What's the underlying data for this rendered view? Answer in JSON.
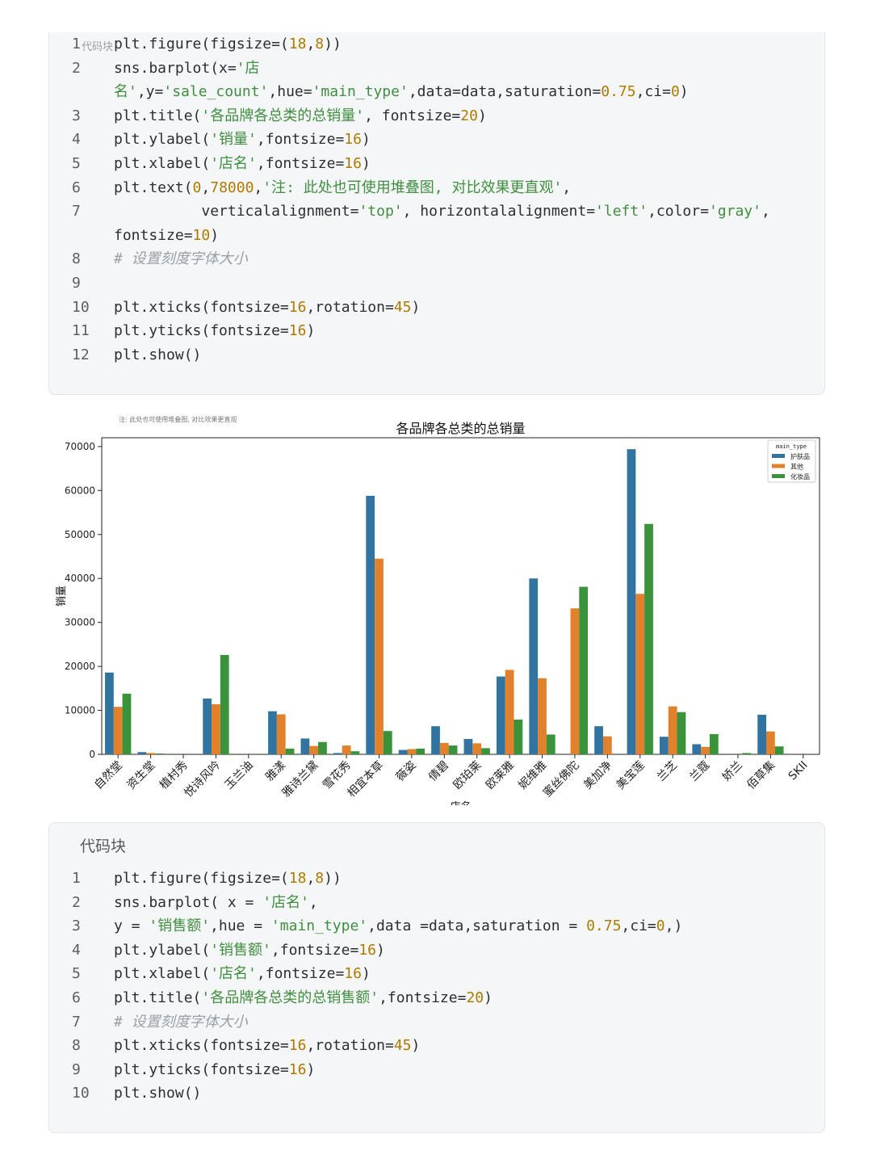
{
  "code_block_1": {
    "title": "代码块",
    "lines": [
      {
        "n": "1",
        "segs": [
          [
            "t",
            "plt.figure(figsize=("
          ],
          [
            "n",
            "18"
          ],
          [
            "t",
            ","
          ],
          [
            "n",
            "8"
          ],
          [
            "t",
            "))"
          ]
        ]
      },
      {
        "n": "2",
        "segs": [
          [
            "t",
            "sns.barplot(x="
          ],
          [
            "s",
            "'店"
          ]
        ]
      },
      {
        "n": "",
        "segs": [
          [
            "s",
            "名'"
          ],
          [
            "t",
            ",y="
          ],
          [
            "s",
            "'sale_count'"
          ],
          [
            "t",
            ",hue="
          ],
          [
            "s",
            "'main_type'"
          ],
          [
            "t",
            ",data=data,saturation="
          ],
          [
            "n",
            "0.75"
          ],
          [
            "t",
            ",ci="
          ],
          [
            "n",
            "0"
          ],
          [
            "t",
            ")"
          ]
        ]
      },
      {
        "n": "3",
        "segs": [
          [
            "t",
            "plt.title("
          ],
          [
            "s",
            "'各品牌各总类的总销量'"
          ],
          [
            "t",
            ", fontsize="
          ],
          [
            "n",
            "20"
          ],
          [
            "t",
            ")"
          ]
        ]
      },
      {
        "n": "4",
        "segs": [
          [
            "t",
            "plt.ylabel("
          ],
          [
            "s",
            "'销量'"
          ],
          [
            "t",
            ",fontsize="
          ],
          [
            "n",
            "16"
          ],
          [
            "t",
            ")"
          ]
        ]
      },
      {
        "n": "5",
        "segs": [
          [
            "t",
            "plt.xlabel("
          ],
          [
            "s",
            "'店名'"
          ],
          [
            "t",
            ",fontsize="
          ],
          [
            "n",
            "16"
          ],
          [
            "t",
            ")"
          ]
        ]
      },
      {
        "n": "6",
        "segs": [
          [
            "t",
            "plt.text("
          ],
          [
            "n",
            "0"
          ],
          [
            "t",
            ","
          ],
          [
            "n",
            "78000"
          ],
          [
            "t",
            ","
          ],
          [
            "s",
            "'注: 此处也可使用堆叠图, 对比效果更直观'"
          ],
          [
            "t",
            ","
          ]
        ]
      },
      {
        "n": "7",
        "segs": [
          [
            "t",
            "          verticalalignment="
          ],
          [
            "s",
            "'top'"
          ],
          [
            "t",
            ", horizontalalignment="
          ],
          [
            "s",
            "'left'"
          ],
          [
            "t",
            ",color="
          ],
          [
            "s",
            "'gray'"
          ],
          [
            "t",
            ","
          ]
        ]
      },
      {
        "n": "",
        "segs": [
          [
            "t",
            "fontsize="
          ],
          [
            "n",
            "10"
          ],
          [
            "t",
            ")"
          ]
        ]
      },
      {
        "n": "8",
        "segs": [
          [
            "c",
            "# 设置刻度字体大小"
          ]
        ]
      },
      {
        "n": "9",
        "segs": []
      },
      {
        "n": "10",
        "segs": [
          [
            "t",
            "plt.xticks(fontsize="
          ],
          [
            "n",
            "16"
          ],
          [
            "t",
            ",rotation="
          ],
          [
            "n",
            "45"
          ],
          [
            "t",
            ")"
          ]
        ]
      },
      {
        "n": "11",
        "segs": [
          [
            "t",
            "plt.yticks(fontsize="
          ],
          [
            "n",
            "16"
          ],
          [
            "t",
            ")"
          ]
        ]
      },
      {
        "n": "12",
        "segs": [
          [
            "t",
            "plt.show()"
          ]
        ]
      }
    ]
  },
  "code_block_2": {
    "title": "代码块",
    "lines": [
      {
        "n": "1",
        "segs": [
          [
            "t",
            "plt.figure(figsize=("
          ],
          [
            "n",
            "18"
          ],
          [
            "t",
            ","
          ],
          [
            "n",
            "8"
          ],
          [
            "t",
            "))"
          ]
        ]
      },
      {
        "n": "2",
        "segs": [
          [
            "t",
            "sns.barplot( x = "
          ],
          [
            "s",
            "'店名'"
          ],
          [
            "t",
            ","
          ]
        ]
      },
      {
        "n": "3",
        "segs": [
          [
            "t",
            "y = "
          ],
          [
            "s",
            "'销售额'"
          ],
          [
            "t",
            ",hue = "
          ],
          [
            "s",
            "'main_type'"
          ],
          [
            "t",
            ",data =data,saturation = "
          ],
          [
            "n",
            "0.75"
          ],
          [
            "t",
            ",ci="
          ],
          [
            "n",
            "0"
          ],
          [
            "t",
            ",)"
          ]
        ]
      },
      {
        "n": "4",
        "segs": [
          [
            "t",
            "plt.ylabel("
          ],
          [
            "s",
            "'销售额'"
          ],
          [
            "t",
            ",fontsize="
          ],
          [
            "n",
            "16"
          ],
          [
            "t",
            ")"
          ]
        ]
      },
      {
        "n": "5",
        "segs": [
          [
            "t",
            "plt.xlabel("
          ],
          [
            "s",
            "'店名'"
          ],
          [
            "t",
            ",fontsize="
          ],
          [
            "n",
            "16"
          ],
          [
            "t",
            ")"
          ]
        ]
      },
      {
        "n": "6",
        "segs": [
          [
            "t",
            "plt.title("
          ],
          [
            "s",
            "'各品牌各总类的总销售额'"
          ],
          [
            "t",
            ",fontsize="
          ],
          [
            "n",
            "20"
          ],
          [
            "t",
            ")"
          ]
        ]
      },
      {
        "n": "7",
        "segs": [
          [
            "c",
            "# 设置刻度字体大小"
          ]
        ]
      },
      {
        "n": "8",
        "segs": [
          [
            "t",
            "plt.xticks(fontsize="
          ],
          [
            "n",
            "16"
          ],
          [
            "t",
            ",rotation="
          ],
          [
            "n",
            "45"
          ],
          [
            "t",
            ")"
          ]
        ]
      },
      {
        "n": "9",
        "segs": [
          [
            "t",
            "plt.yticks(fontsize="
          ],
          [
            "n",
            "16"
          ],
          [
            "t",
            ")"
          ]
        ]
      },
      {
        "n": "10",
        "segs": [
          [
            "t",
            "plt.show()"
          ]
        ]
      }
    ]
  },
  "colors": {
    "skin_care": "#3274a1",
    "other": "#e1812c",
    "cosmetics": "#3a923a"
  },
  "chart_data": {
    "type": "bar",
    "title": "各品牌各总类的总销量",
    "annotation": "注: 此处也可使用堆叠图, 对比效果更直观",
    "xlabel": "店名",
    "ylabel": "销量",
    "ylim": [
      0,
      72000
    ],
    "yticks": [
      0,
      10000,
      20000,
      30000,
      40000,
      50000,
      60000,
      70000
    ],
    "legend_title": "main_type",
    "legend_position": "top-right",
    "categories": [
      "自然堂",
      "资生堂",
      "植村秀",
      "悦诗风吟",
      "玉兰油",
      "雅漾",
      "雅诗兰黛",
      "雪花秀",
      "相宜本草",
      "薇姿",
      "倩碧",
      "欧珀莱",
      "欧莱雅",
      "妮维雅",
      "蜜丝佛陀",
      "美加净",
      "美宝莲",
      "兰芝",
      "兰蔻",
      "娇兰",
      "佰草集",
      "SKII"
    ],
    "series": [
      {
        "name": "护肤品",
        "values": [
          18600,
          500,
          0,
          12700,
          0,
          9800,
          3600,
          300,
          58800,
          1000,
          6400,
          3500,
          17700,
          40000,
          0,
          6400,
          69400,
          4000,
          2300,
          0,
          9000,
          0
        ]
      },
      {
        "name": "其他",
        "values": [
          10800,
          300,
          0,
          11400,
          0,
          9100,
          1900,
          2000,
          44500,
          1200,
          2600,
          2500,
          19200,
          17300,
          33200,
          4100,
          36500,
          10900,
          1700,
          0,
          5200,
          0
        ]
      },
      {
        "name": "化妆品",
        "values": [
          13800,
          200,
          0,
          22600,
          0,
          1300,
          2800,
          700,
          5300,
          1300,
          2000,
          1400,
          7900,
          4500,
          38100,
          0,
          52400,
          9600,
          4600,
          300,
          1800,
          0
        ]
      }
    ]
  }
}
